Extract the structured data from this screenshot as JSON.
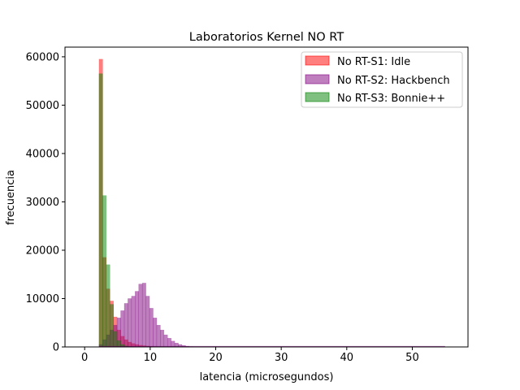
{
  "chart_data": {
    "type": "bar",
    "title": "Laboratorios Kernel NO RT",
    "xlabel": "latencia (microsegundos)",
    "ylabel": "frecuencia",
    "xlim": [
      -3,
      58.5
    ],
    "ylim": [
      0,
      62000
    ],
    "xticks": [
      0,
      10,
      20,
      30,
      40,
      50
    ],
    "yticks": [
      0,
      10000,
      20000,
      30000,
      40000,
      50000,
      60000
    ],
    "bin_width": 0.55,
    "legend_position": "upper-right",
    "grid": false,
    "series": [
      {
        "name": "No RT-S1: Idle",
        "color": "#ff0000",
        "opacity": 0.5,
        "bins": [
          [
            2.2,
            59500
          ],
          [
            2.75,
            18500
          ],
          [
            3.3,
            12000
          ],
          [
            3.85,
            9500
          ],
          [
            4.4,
            6200
          ],
          [
            4.95,
            3500
          ],
          [
            5.5,
            2200
          ],
          [
            6.05,
            1500
          ],
          [
            6.6,
            1000
          ],
          [
            7.15,
            700
          ],
          [
            7.7,
            500
          ],
          [
            8.25,
            350
          ],
          [
            8.8,
            250
          ],
          [
            9.35,
            180
          ],
          [
            9.9,
            120
          ],
          [
            10.45,
            80
          ],
          [
            11.0,
            60
          ],
          [
            11.55,
            40
          ]
        ]
      },
      {
        "name": "No RT-S2: Hackbench",
        "color": "#800080",
        "opacity": 0.5,
        "bins": [
          [
            2.2,
            500
          ],
          [
            2.75,
            1500
          ],
          [
            3.3,
            2500
          ],
          [
            3.85,
            3500
          ],
          [
            4.4,
            4500
          ],
          [
            4.95,
            6000
          ],
          [
            5.5,
            7500
          ],
          [
            6.05,
            9000
          ],
          [
            6.6,
            10000
          ],
          [
            7.15,
            10500
          ],
          [
            7.7,
            11500
          ],
          [
            8.25,
            13000
          ],
          [
            8.8,
            13200
          ],
          [
            9.35,
            10500
          ],
          [
            9.9,
            8000
          ],
          [
            10.45,
            6000
          ],
          [
            11.0,
            4500
          ],
          [
            11.55,
            3500
          ],
          [
            12.1,
            2500
          ],
          [
            12.65,
            1800
          ],
          [
            13.2,
            1200
          ],
          [
            13.75,
            800
          ],
          [
            14.3,
            500
          ],
          [
            14.85,
            300
          ],
          [
            15.4,
            150
          ],
          [
            15.95,
            80
          ],
          [
            16.5,
            40
          ]
        ]
      },
      {
        "name": "No RT-S3: Bonnie++",
        "color": "#008000",
        "opacity": 0.5,
        "bins": [
          [
            2.2,
            56500
          ],
          [
            2.75,
            31300
          ],
          [
            3.3,
            17000
          ],
          [
            3.85,
            8800
          ],
          [
            4.4,
            3200
          ],
          [
            4.95,
            1300
          ],
          [
            5.5,
            500
          ],
          [
            6.05,
            200
          ],
          [
            6.6,
            80
          ]
        ]
      }
    ]
  }
}
